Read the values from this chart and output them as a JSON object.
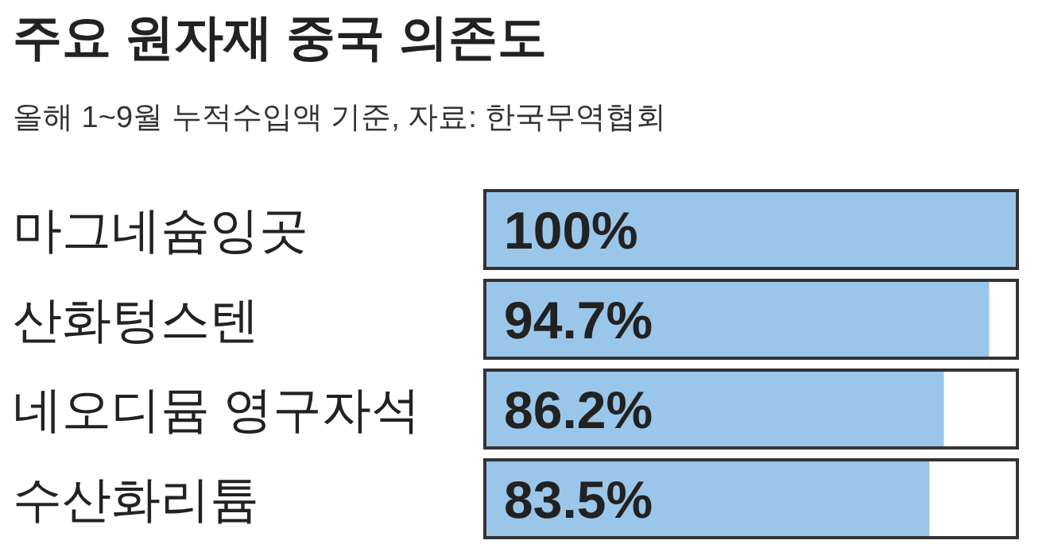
{
  "chart_data": {
    "type": "bar",
    "orientation": "horizontal",
    "title": "주요 원자재 중국 의존도",
    "subtitle": "올해 1~9월 누적수입액 기준, 자료: 한국무역협회",
    "categories": [
      "마그네슘잉곳",
      "산화텅스텐",
      "네오디뮴 영구자석",
      "수산화리튬"
    ],
    "values": [
      100,
      94.7,
      86.2,
      83.5
    ],
    "value_labels": [
      "100%",
      "94.7%",
      "86.2%",
      "83.5%"
    ],
    "color": "#9ac6ea",
    "xlim": [
      0,
      100
    ]
  }
}
